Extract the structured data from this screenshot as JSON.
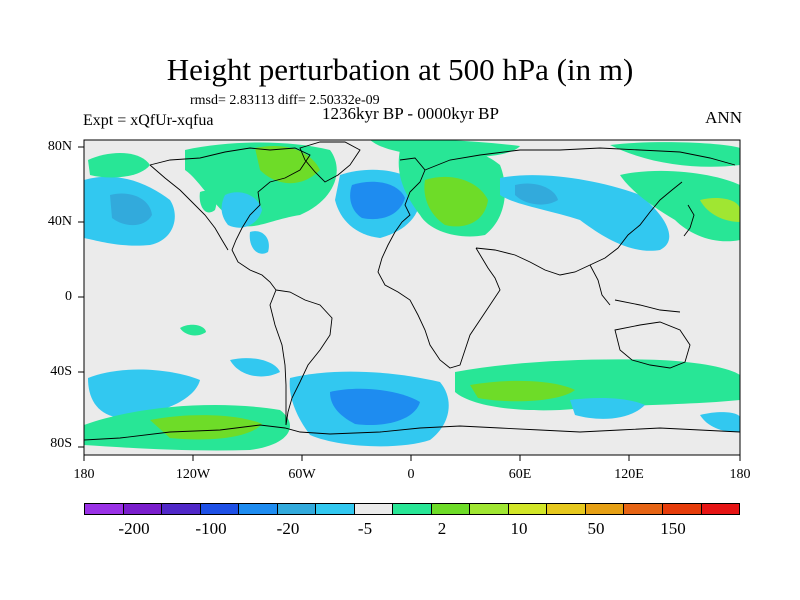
{
  "title": "Height perturbation at 500 hPa (in m)",
  "stats": "rmsd= 2.83113 diff= 2.50332e-09",
  "experiment": "Expt = xQfUr-xqfua",
  "time_range": "1236kyr BP - 0000kyr BP",
  "season": "ANN",
  "lat_labels": [
    "80N",
    "40N",
    "0",
    "40S",
    "80S"
  ],
  "lon_labels": [
    "180",
    "120W",
    "60W",
    "0",
    "60E",
    "120E",
    "180"
  ],
  "colorbar": {
    "colors": [
      "#9a32e6",
      "#7a1ecc",
      "#5028c8",
      "#1e50e6",
      "#1e8cf0",
      "#32aadc",
      "#32c8f0",
      "#ebebeb",
      "#28e696",
      "#6edc28",
      "#a0e632",
      "#d2e628",
      "#e6c81e",
      "#e6a014",
      "#e66414",
      "#e63c0a",
      "#e61414"
    ],
    "labels": [
      "-200",
      "-100",
      "-20",
      "-5",
      "2",
      "10",
      "50",
      "150"
    ]
  }
}
